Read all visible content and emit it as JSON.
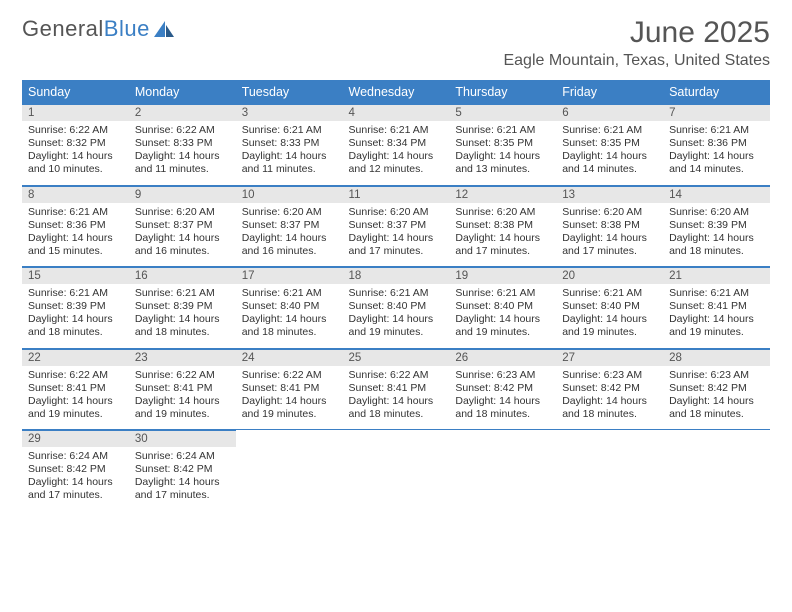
{
  "logo": {
    "text1": "General",
    "text2": "Blue"
  },
  "title": "June 2025",
  "location": "Eagle Mountain, Texas, United States",
  "colors": {
    "header_bg": "#3b7fc4",
    "header_text": "#ffffff",
    "daynum_bg": "#e7e7e7",
    "text": "#333333",
    "border": "#3b7fc4"
  },
  "day_names": [
    "Sunday",
    "Monday",
    "Tuesday",
    "Wednesday",
    "Thursday",
    "Friday",
    "Saturday"
  ],
  "weeks": [
    [
      {
        "n": "1",
        "sr": "Sunrise: 6:22 AM",
        "ss": "Sunset: 8:32 PM",
        "dl": "Daylight: 14 hours and 10 minutes."
      },
      {
        "n": "2",
        "sr": "Sunrise: 6:22 AM",
        "ss": "Sunset: 8:33 PM",
        "dl": "Daylight: 14 hours and 11 minutes."
      },
      {
        "n": "3",
        "sr": "Sunrise: 6:21 AM",
        "ss": "Sunset: 8:33 PM",
        "dl": "Daylight: 14 hours and 11 minutes."
      },
      {
        "n": "4",
        "sr": "Sunrise: 6:21 AM",
        "ss": "Sunset: 8:34 PM",
        "dl": "Daylight: 14 hours and 12 minutes."
      },
      {
        "n": "5",
        "sr": "Sunrise: 6:21 AM",
        "ss": "Sunset: 8:35 PM",
        "dl": "Daylight: 14 hours and 13 minutes."
      },
      {
        "n": "6",
        "sr": "Sunrise: 6:21 AM",
        "ss": "Sunset: 8:35 PM",
        "dl": "Daylight: 14 hours and 14 minutes."
      },
      {
        "n": "7",
        "sr": "Sunrise: 6:21 AM",
        "ss": "Sunset: 8:36 PM",
        "dl": "Daylight: 14 hours and 14 minutes."
      }
    ],
    [
      {
        "n": "8",
        "sr": "Sunrise: 6:21 AM",
        "ss": "Sunset: 8:36 PM",
        "dl": "Daylight: 14 hours and 15 minutes."
      },
      {
        "n": "9",
        "sr": "Sunrise: 6:20 AM",
        "ss": "Sunset: 8:37 PM",
        "dl": "Daylight: 14 hours and 16 minutes."
      },
      {
        "n": "10",
        "sr": "Sunrise: 6:20 AM",
        "ss": "Sunset: 8:37 PM",
        "dl": "Daylight: 14 hours and 16 minutes."
      },
      {
        "n": "11",
        "sr": "Sunrise: 6:20 AM",
        "ss": "Sunset: 8:37 PM",
        "dl": "Daylight: 14 hours and 17 minutes."
      },
      {
        "n": "12",
        "sr": "Sunrise: 6:20 AM",
        "ss": "Sunset: 8:38 PM",
        "dl": "Daylight: 14 hours and 17 minutes."
      },
      {
        "n": "13",
        "sr": "Sunrise: 6:20 AM",
        "ss": "Sunset: 8:38 PM",
        "dl": "Daylight: 14 hours and 17 minutes."
      },
      {
        "n": "14",
        "sr": "Sunrise: 6:20 AM",
        "ss": "Sunset: 8:39 PM",
        "dl": "Daylight: 14 hours and 18 minutes."
      }
    ],
    [
      {
        "n": "15",
        "sr": "Sunrise: 6:21 AM",
        "ss": "Sunset: 8:39 PM",
        "dl": "Daylight: 14 hours and 18 minutes."
      },
      {
        "n": "16",
        "sr": "Sunrise: 6:21 AM",
        "ss": "Sunset: 8:39 PM",
        "dl": "Daylight: 14 hours and 18 minutes."
      },
      {
        "n": "17",
        "sr": "Sunrise: 6:21 AM",
        "ss": "Sunset: 8:40 PM",
        "dl": "Daylight: 14 hours and 18 minutes."
      },
      {
        "n": "18",
        "sr": "Sunrise: 6:21 AM",
        "ss": "Sunset: 8:40 PM",
        "dl": "Daylight: 14 hours and 19 minutes."
      },
      {
        "n": "19",
        "sr": "Sunrise: 6:21 AM",
        "ss": "Sunset: 8:40 PM",
        "dl": "Daylight: 14 hours and 19 minutes."
      },
      {
        "n": "20",
        "sr": "Sunrise: 6:21 AM",
        "ss": "Sunset: 8:40 PM",
        "dl": "Daylight: 14 hours and 19 minutes."
      },
      {
        "n": "21",
        "sr": "Sunrise: 6:21 AM",
        "ss": "Sunset: 8:41 PM",
        "dl": "Daylight: 14 hours and 19 minutes."
      }
    ],
    [
      {
        "n": "22",
        "sr": "Sunrise: 6:22 AM",
        "ss": "Sunset: 8:41 PM",
        "dl": "Daylight: 14 hours and 19 minutes."
      },
      {
        "n": "23",
        "sr": "Sunrise: 6:22 AM",
        "ss": "Sunset: 8:41 PM",
        "dl": "Daylight: 14 hours and 19 minutes."
      },
      {
        "n": "24",
        "sr": "Sunrise: 6:22 AM",
        "ss": "Sunset: 8:41 PM",
        "dl": "Daylight: 14 hours and 19 minutes."
      },
      {
        "n": "25",
        "sr": "Sunrise: 6:22 AM",
        "ss": "Sunset: 8:41 PM",
        "dl": "Daylight: 14 hours and 18 minutes."
      },
      {
        "n": "26",
        "sr": "Sunrise: 6:23 AM",
        "ss": "Sunset: 8:42 PM",
        "dl": "Daylight: 14 hours and 18 minutes."
      },
      {
        "n": "27",
        "sr": "Sunrise: 6:23 AM",
        "ss": "Sunset: 8:42 PM",
        "dl": "Daylight: 14 hours and 18 minutes."
      },
      {
        "n": "28",
        "sr": "Sunrise: 6:23 AM",
        "ss": "Sunset: 8:42 PM",
        "dl": "Daylight: 14 hours and 18 minutes."
      }
    ],
    [
      {
        "n": "29",
        "sr": "Sunrise: 6:24 AM",
        "ss": "Sunset: 8:42 PM",
        "dl": "Daylight: 14 hours and 17 minutes."
      },
      {
        "n": "30",
        "sr": "Sunrise: 6:24 AM",
        "ss": "Sunset: 8:42 PM",
        "dl": "Daylight: 14 hours and 17 minutes."
      },
      null,
      null,
      null,
      null,
      null
    ]
  ]
}
